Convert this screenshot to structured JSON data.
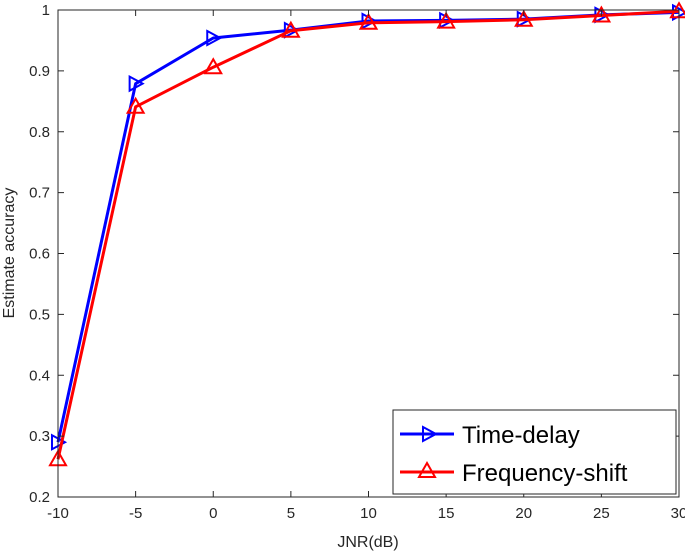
{
  "chart_data": {
    "type": "line",
    "title": "",
    "xlabel": "JNR(dB)",
    "ylabel": "Estimate accuracy",
    "x": [
      -10,
      -5,
      0,
      5,
      10,
      15,
      20,
      25,
      30
    ],
    "xlim": [
      -10,
      30
    ],
    "ylim": [
      0.2,
      1
    ],
    "xticks": [
      "-10",
      "-5",
      "0",
      "5",
      "10",
      "15",
      "20",
      "25",
      "30"
    ],
    "yticks": [
      "0.2",
      "0.3",
      "0.4",
      "0.5",
      "0.6",
      "0.7",
      "0.8",
      "0.9",
      "1"
    ],
    "grid": false,
    "legend_position": "bottom-right",
    "series": [
      {
        "name": "Time-delay",
        "color": "#0000ff",
        "marker": "triangle-right",
        "values": [
          0.29,
          0.879,
          0.954,
          0.967,
          0.982,
          0.983,
          0.985,
          0.992,
          0.996
        ]
      },
      {
        "name": "Frequency-shift",
        "color": "#ff0000",
        "marker": "triangle-up",
        "values": [
          0.262,
          0.841,
          0.906,
          0.966,
          0.979,
          0.981,
          0.984,
          0.991,
          0.998
        ]
      }
    ]
  }
}
